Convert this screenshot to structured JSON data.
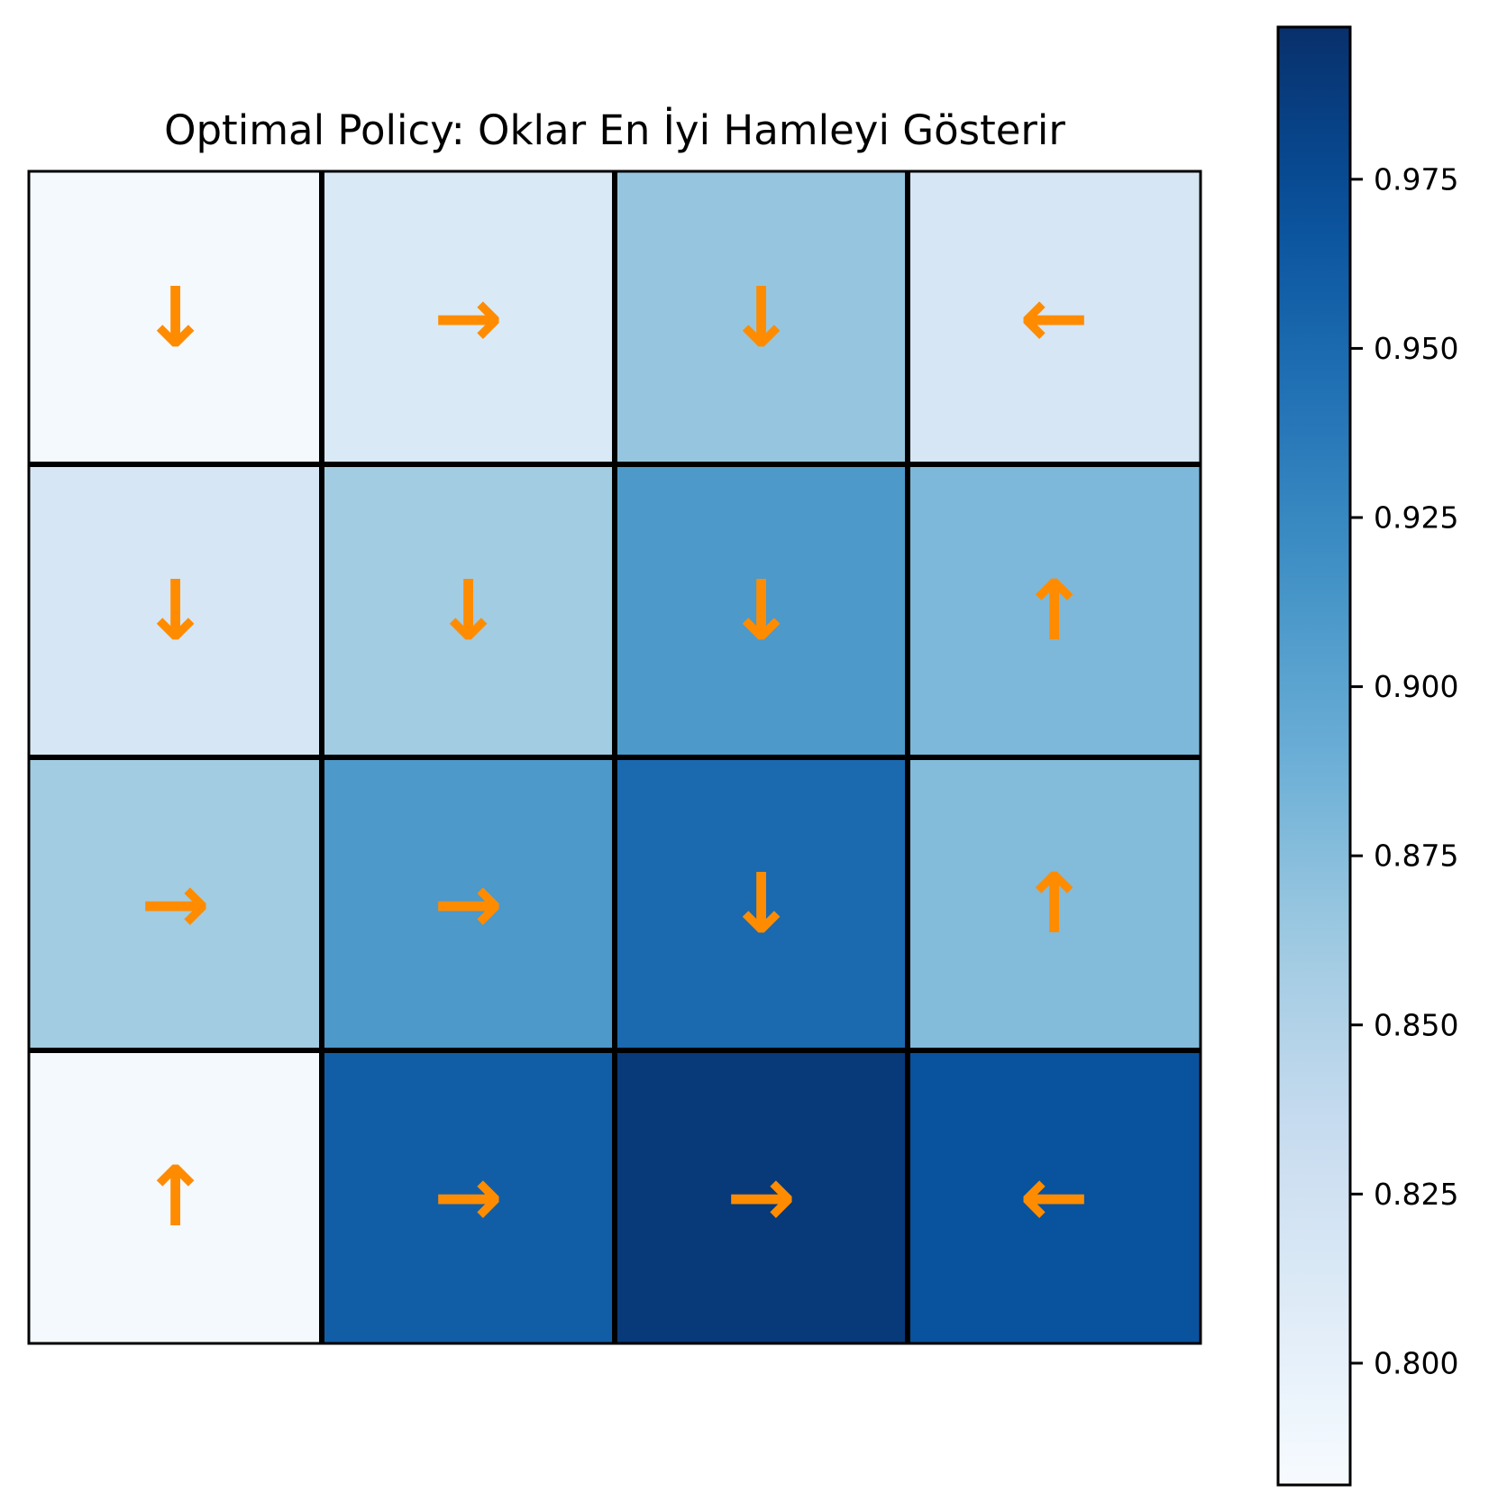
{
  "chart_data": {
    "type": "heatmap",
    "title": "Optimal Policy: Oklar En İyi Hamleyi Gösterir",
    "xlabel": "",
    "ylabel": "",
    "rows": 4,
    "cols": 4,
    "values": [
      [
        0.785,
        0.813,
        0.867,
        0.818
      ],
      [
        0.818,
        0.86,
        0.91,
        0.88
      ],
      [
        0.86,
        0.91,
        0.95,
        0.877
      ],
      [
        0.785,
        0.96,
        0.99,
        0.97
      ]
    ],
    "arrows": [
      [
        "↓",
        "→",
        "↓",
        "←"
      ],
      [
        "↓",
        "↓",
        "↓",
        "↑"
      ],
      [
        "→",
        "→",
        "↓",
        "↑"
      ],
      [
        "↑",
        "→",
        "→",
        "←"
      ]
    ],
    "arrow_color": "#ff8c00",
    "colormap": "Blues",
    "colorbar": {
      "vmin": 0.782,
      "vmax": 0.9975,
      "ticks": [
        0.8,
        0.825,
        0.85,
        0.875,
        0.9,
        0.925,
        0.95,
        0.975
      ],
      "tick_labels": [
        "0.800",
        "0.825",
        "0.850",
        "0.875",
        "0.900",
        "0.925",
        "0.950",
        "0.975"
      ]
    },
    "grid": true
  }
}
